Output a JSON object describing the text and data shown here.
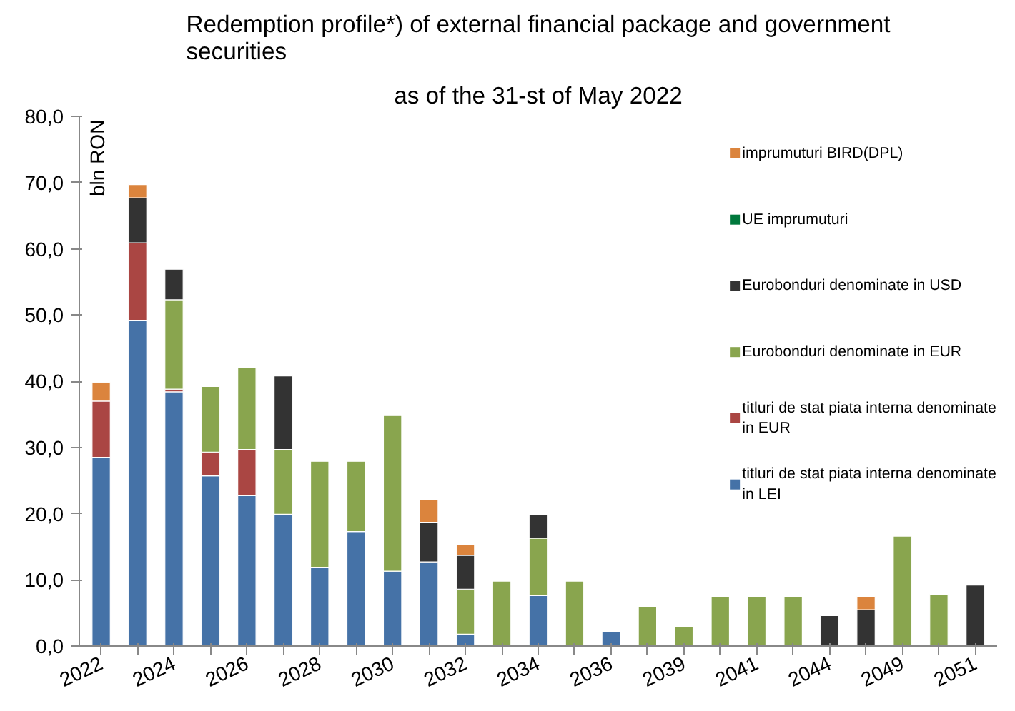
{
  "chart_data": {
    "type": "bar",
    "stacked": true,
    "title": "Redemption profile*) of external financial package and government securities",
    "subtitle": "as of the 31-st of May 2022",
    "ylabel": "bln RON",
    "categories": [
      "2022",
      null,
      "2024",
      null,
      "2026",
      null,
      "2028",
      null,
      "2030",
      null,
      "2032",
      null,
      "2034",
      null,
      "2036",
      null,
      "2039",
      null,
      "2041",
      null,
      "2044",
      null,
      "2049",
      null,
      "2051"
    ],
    "series": [
      {
        "name": "titluri de stat piata interna denominate in LEI",
        "color": "#4572a7",
        "values": [
          28.5,
          49.2,
          38.4,
          25.7,
          22.7,
          19.9,
          11.9,
          17.3,
          11.3,
          12.7,
          1.8,
          null,
          7.6,
          null,
          2.2,
          null,
          null,
          null,
          null,
          null,
          null,
          null,
          null,
          null,
          null
        ]
      },
      {
        "name": "titluri de stat piata interna denominate in EUR",
        "color": "#aa4643",
        "values": [
          8.5,
          11.7,
          0.4,
          3.6,
          7.0,
          null,
          null,
          null,
          null,
          null,
          null,
          null,
          null,
          null,
          null,
          null,
          null,
          null,
          null,
          null,
          null,
          null,
          null,
          null,
          null
        ]
      },
      {
        "name": "Eurobonduri  denominate in EUR",
        "color": "#89a54e",
        "values": [
          null,
          null,
          13.5,
          9.9,
          12.3,
          9.8,
          16.0,
          10.6,
          23.5,
          null,
          6.8,
          9.8,
          8.7,
          9.8,
          null,
          6.0,
          2.9,
          7.4,
          7.4,
          7.4,
          null,
          null,
          16.6,
          7.8,
          null
        ]
      },
      {
        "name": "Eurobonduri denominate in USD",
        "color": "#333333",
        "values": [
          null,
          6.8,
          4.6,
          null,
          null,
          11.1,
          null,
          null,
          null,
          6.0,
          5.1,
          null,
          3.6,
          null,
          null,
          null,
          null,
          null,
          null,
          null,
          4.6,
          5.5,
          null,
          null,
          9.2
        ]
      },
      {
        "name": "UE imprumuturi",
        "color": "#00783c",
        "values": [
          null,
          null,
          null,
          null,
          null,
          null,
          null,
          null,
          null,
          null,
          null,
          null,
          null,
          null,
          null,
          null,
          null,
          null,
          null,
          null,
          null,
          null,
          null,
          null,
          null
        ]
      },
      {
        "name": "imprumuturi BIRD(DPL)",
        "color": "#db843d",
        "values": [
          2.8,
          2.0,
          null,
          null,
          null,
          null,
          null,
          null,
          null,
          3.4,
          1.6,
          null,
          null,
          null,
          null,
          null,
          null,
          null,
          null,
          null,
          null,
          2.0,
          null,
          null,
          null
        ]
      }
    ],
    "ylim": [
      0,
      80
    ],
    "yticks": [
      {
        "value": 0,
        "label": "0,0"
      },
      {
        "value": 10,
        "label": "10,0"
      },
      {
        "value": 20,
        "label": "20,0"
      },
      {
        "value": 30,
        "label": "30,0"
      },
      {
        "value": 40,
        "label": "40,0"
      },
      {
        "value": 50,
        "label": "50,0"
      },
      {
        "value": 60,
        "label": "60,0"
      },
      {
        "value": 70,
        "label": "70,0"
      },
      {
        "value": 80,
        "label": "80,0"
      }
    ],
    "grid": false,
    "legend": "right"
  }
}
